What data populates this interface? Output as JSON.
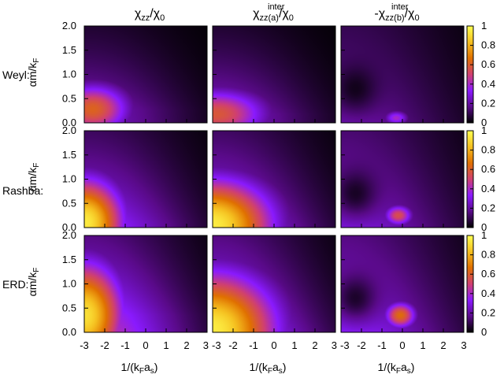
{
  "chart_data": {
    "type": "heatmap",
    "layout": {
      "rows": 3,
      "cols": 3
    },
    "column_titles": [
      {
        "base": "χ",
        "sub": "zz",
        "sup": "",
        "tail": "/χ",
        "tail_sub": "0"
      },
      {
        "base": "χ",
        "sub": "zz(a)",
        "sup": "inter",
        "tail": "/χ",
        "tail_sub": "0"
      },
      {
        "base": "-χ",
        "sub": "zz(b)",
        "sup": "inter",
        "tail": "/χ",
        "tail_sub": "0"
      }
    ],
    "row_labels": [
      "Weyl:",
      "Rashba:",
      "ERD:"
    ],
    "xlabel": {
      "main": "1/(k",
      "sub1": "F",
      "mid": "a",
      "sub2": "s",
      "end": ")"
    },
    "ylabel": {
      "main": "αm/k",
      "sub": "F"
    },
    "xlim": [
      -3,
      3
    ],
    "ylim": [
      0,
      2
    ],
    "x_ticks": [
      -3,
      -2,
      -1,
      0,
      1,
      2,
      3
    ],
    "y_ticks": [
      "0.0",
      "0.5",
      "1.0",
      "1.5",
      "2.0"
    ],
    "colorbar": {
      "range": [
        0,
        1
      ],
      "ticks": [
        "0",
        "0.2",
        "0.4",
        "0.6",
        "0.8",
        "1"
      ],
      "colormap": [
        "#000000",
        "#5a0a8a",
        "#8a1aff",
        "#d04070",
        "#e07000",
        "#f5c020",
        "#ffff50"
      ]
    },
    "panels": [
      {
        "row": 0,
        "col": 0,
        "shape": "lobe",
        "peak": 0.62,
        "x0": -2.6,
        "y0": 0.28,
        "ax": 1.9,
        "ay": 0.55,
        "tail": 0.28
      },
      {
        "row": 0,
        "col": 1,
        "shape": "lobe",
        "peak": 0.58,
        "x0": -2.8,
        "y0": 0.18,
        "ax": 2.6,
        "ay": 0.55,
        "tail": 0.3
      },
      {
        "row": 0,
        "col": 2,
        "shape": "ridge",
        "peak": 0.4,
        "x0": -0.3,
        "y0": 0.1,
        "ax": 0.7,
        "ay": 0.18,
        "tail": 0.22
      },
      {
        "row": 1,
        "col": 0,
        "shape": "lobe",
        "peak": 0.95,
        "x0": -3.0,
        "y0": 0.1,
        "ax": 2.0,
        "ay": 0.95,
        "tail": 0.4
      },
      {
        "row": 1,
        "col": 1,
        "shape": "lobe",
        "peak": 0.95,
        "x0": -3.0,
        "y0": 0.05,
        "ax": 3.1,
        "ay": 1.0,
        "tail": 0.42
      },
      {
        "row": 1,
        "col": 2,
        "shape": "ridge",
        "peak": 0.55,
        "x0": -0.2,
        "y0": 0.25,
        "ax": 0.8,
        "ay": 0.25,
        "tail": 0.3
      },
      {
        "row": 2,
        "col": 0,
        "shape": "lobe",
        "peak": 0.92,
        "x0": -3.0,
        "y0": 0.35,
        "ax": 2.0,
        "ay": 1.15,
        "tail": 0.5
      },
      {
        "row": 2,
        "col": 1,
        "shape": "lobe",
        "peak": 0.95,
        "x0": -3.0,
        "y0": 0.05,
        "ax": 3.3,
        "ay": 1.25,
        "tail": 0.5
      },
      {
        "row": 2,
        "col": 2,
        "shape": "ridge",
        "peak": 0.65,
        "x0": -0.1,
        "y0": 0.35,
        "ax": 0.9,
        "ay": 0.32,
        "tail": 0.35
      }
    ]
  }
}
